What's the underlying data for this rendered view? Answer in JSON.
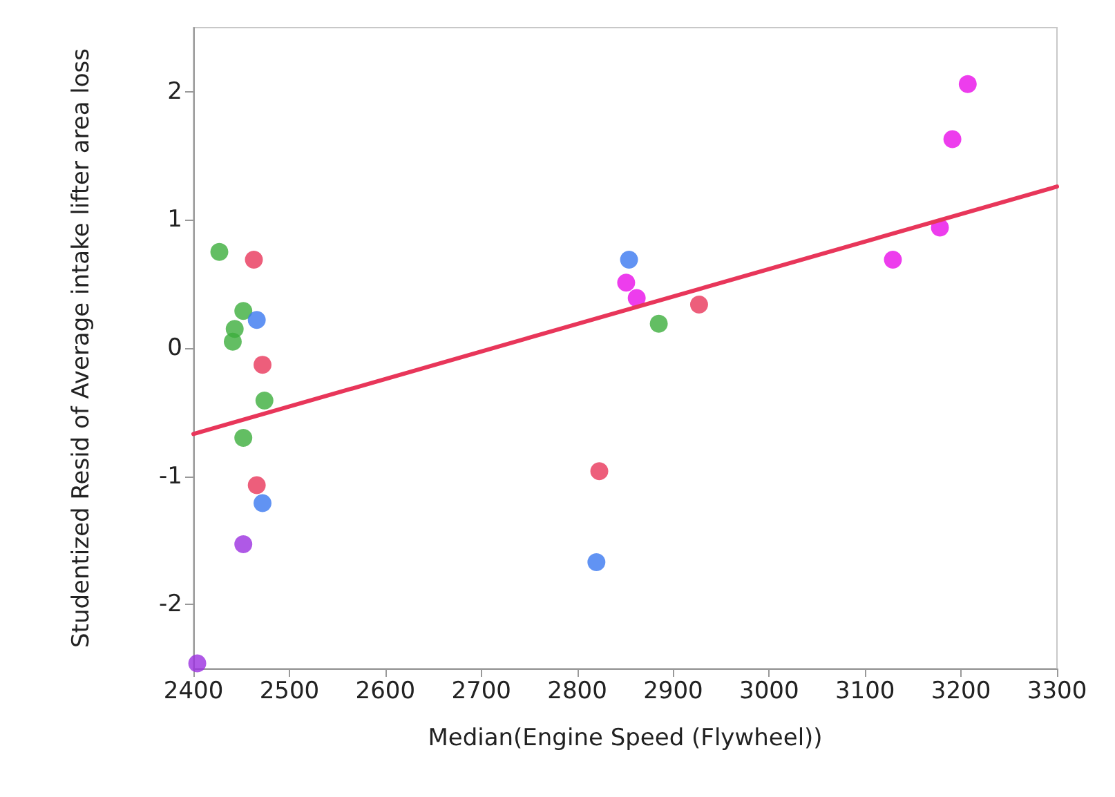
{
  "chart_data": {
    "type": "scatter",
    "xlabel": "Median(Engine Speed (Flywheel))",
    "ylabel": "Studentized Resid of Average intake lifter area loss",
    "xlim": [
      2400,
      3300
    ],
    "xticks": [
      2400,
      2500,
      2600,
      2700,
      2800,
      2900,
      3000,
      3100,
      3200,
      3300
    ],
    "ylim": [
      -2.5,
      2.5
    ],
    "yticks": [
      -2,
      -1,
      0,
      1,
      2
    ],
    "grid": false,
    "marker": "circle",
    "series": [
      {
        "color": "#3cae3c",
        "x": [
          2427,
          2452,
          2443,
          2441,
          2474,
          2452,
          2885
        ],
        "values": [
          0.75,
          0.29,
          0.15,
          0.05,
          -0.41,
          -0.7,
          0.19
        ]
      },
      {
        "color": "#e8365a",
        "x": [
          2463,
          2472,
          2466,
          2823,
          2927
        ],
        "values": [
          0.69,
          -0.13,
          -1.07,
          -0.96,
          0.34
        ]
      },
      {
        "color": "#3a78f0",
        "x": [
          2466,
          2472,
          2854,
          2820
        ],
        "values": [
          0.22,
          -1.21,
          0.69,
          -1.67
        ]
      },
      {
        "color": "#9b30e0",
        "x": [
          2452,
          2404
        ],
        "values": [
          -1.53,
          -2.46
        ]
      },
      {
        "color": "#e80ce8",
        "x": [
          2851,
          2862,
          3129,
          3178,
          3191,
          3207
        ],
        "values": [
          0.51,
          0.39,
          0.69,
          0.94,
          1.63,
          2.06
        ]
      },
      {
        "type": "line",
        "color": "#e8365a",
        "marker": "none",
        "line_style": "solid",
        "x": [
          2400,
          3300
        ],
        "values": [
          -0.67,
          1.26
        ]
      }
    ]
  }
}
